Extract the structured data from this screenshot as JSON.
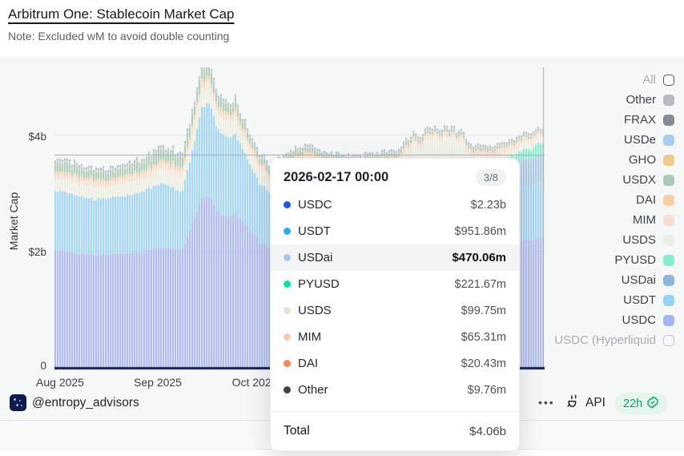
{
  "header": {
    "title": "Arbitrum One: Stablecoin Market Cap",
    "note": "Note: Excluded wM to avoid double counting"
  },
  "chart_data": {
    "type": "bar",
    "subtype": "stacked-time-series",
    "title": "Arbitrum One: Stablecoin Market Cap",
    "ylabel": "Market Cap",
    "xlabel": "",
    "y_ticks": [
      "$4b",
      "$2b",
      "0"
    ],
    "y_tick_values_billions": [
      4,
      2,
      0
    ],
    "x_ticks": [
      "Aug 2025",
      "Sep 2025",
      "Oct 2025"
    ],
    "x_range": [
      "2025-08-01",
      "2026-02-17"
    ],
    "ylim_billions": [
      0,
      5.2
    ],
    "grid": "horizontal",
    "legend_position": "right",
    "axis_line_color": "#152052",
    "grid_color": "#e4e6e8",
    "crosshair_color": "#a7abb0",
    "series_bottom_to_top": [
      {
        "name": "USDC",
        "color": "#a8b5f3",
        "anchors": [
          [
            0,
            2.02
          ],
          [
            0.08,
            1.92
          ],
          [
            0.16,
            1.98
          ],
          [
            0.22,
            2.06
          ],
          [
            0.26,
            2.02
          ],
          [
            0.285,
            2.55
          ],
          [
            0.3,
            2.9
          ],
          [
            0.315,
            2.95
          ],
          [
            0.33,
            2.7
          ],
          [
            0.35,
            2.6
          ],
          [
            0.37,
            2.62
          ],
          [
            0.395,
            2.4
          ],
          [
            0.42,
            2.15
          ],
          [
            0.44,
            2.05
          ],
          [
            0.48,
            2.22
          ],
          [
            0.52,
            2.28
          ],
          [
            0.56,
            2.18
          ],
          [
            0.62,
            2.1
          ],
          [
            0.68,
            2.06
          ],
          [
            0.74,
            2.14
          ],
          [
            0.8,
            2.18
          ],
          [
            0.86,
            2.1
          ],
          [
            0.92,
            2.12
          ],
          [
            1,
            2.23
          ]
        ]
      },
      {
        "name": "USDT",
        "color": "#9cd2f5",
        "anchors": [
          [
            0,
            1.02
          ],
          [
            0.08,
            0.96
          ],
          [
            0.16,
            1.0
          ],
          [
            0.22,
            1.1
          ],
          [
            0.26,
            1.0
          ],
          [
            0.285,
            1.3
          ],
          [
            0.3,
            1.55
          ],
          [
            0.315,
            1.6
          ],
          [
            0.33,
            1.45
          ],
          [
            0.35,
            1.35
          ],
          [
            0.37,
            1.38
          ],
          [
            0.395,
            1.15
          ],
          [
            0.42,
            1.0
          ],
          [
            0.44,
            0.95
          ],
          [
            0.48,
            1.05
          ],
          [
            0.52,
            1.1
          ],
          [
            0.56,
            1.0
          ],
          [
            0.62,
            0.95
          ],
          [
            0.68,
            0.92
          ],
          [
            0.74,
            0.95
          ],
          [
            0.8,
            1.0
          ],
          [
            0.86,
            0.95
          ],
          [
            0.92,
            0.93
          ],
          [
            1,
            0.95
          ]
        ]
      },
      {
        "name": "USDai",
        "color": "#a6c6e3",
        "anchors": [
          [
            0,
            0
          ],
          [
            0.5,
            0
          ],
          [
            0.56,
            0.06
          ],
          [
            0.62,
            0.16
          ],
          [
            0.68,
            0.26
          ],
          [
            0.74,
            0.3
          ],
          [
            0.8,
            0.33
          ],
          [
            0.86,
            0.38
          ],
          [
            0.92,
            0.42
          ],
          [
            1,
            0.47
          ]
        ]
      },
      {
        "name": "PYUSD",
        "color": "#7eeccd",
        "anchors": [
          [
            0,
            0
          ],
          [
            0.86,
            0
          ],
          [
            0.9,
            0.06
          ],
          [
            0.94,
            0.13
          ],
          [
            1,
            0.22
          ]
        ]
      },
      {
        "name": "USDS",
        "color": "#edefe2",
        "anchors": [
          [
            0,
            0.22
          ],
          [
            0.1,
            0.2
          ],
          [
            0.2,
            0.22
          ],
          [
            0.3,
            0.3
          ],
          [
            0.35,
            0.27
          ],
          [
            0.4,
            0.22
          ],
          [
            0.5,
            0.2
          ],
          [
            0.6,
            0.22
          ],
          [
            0.7,
            0.26
          ],
          [
            0.73,
            0.42
          ],
          [
            0.78,
            0.46
          ],
          [
            0.83,
            0.42
          ],
          [
            0.85,
            0.22
          ],
          [
            0.9,
            0.12
          ],
          [
            1,
            0.1
          ]
        ]
      },
      {
        "name": "MIM",
        "color": "#f8dcd0",
        "anchors": [
          [
            0,
            0.08
          ],
          [
            0.3,
            0.09
          ],
          [
            0.6,
            0.07
          ],
          [
            1,
            0.065
          ]
        ]
      },
      {
        "name": "DAI",
        "color": "#f6cfa6",
        "anchors": [
          [
            0,
            0.05
          ],
          [
            0.3,
            0.06
          ],
          [
            0.6,
            0.03
          ],
          [
            1,
            0.02
          ]
        ]
      },
      {
        "name": "USDX",
        "color": "#a9cab5",
        "anchors": [
          [
            0,
            0.14
          ],
          [
            0.1,
            0.12
          ],
          [
            0.2,
            0.16
          ],
          [
            0.3,
            0.2
          ],
          [
            0.35,
            0.15
          ],
          [
            0.4,
            0.1
          ],
          [
            0.5,
            0.07
          ],
          [
            0.6,
            0.06
          ],
          [
            0.7,
            0.05
          ],
          [
            0.8,
            0.04
          ],
          [
            0.9,
            0.03
          ],
          [
            1,
            0.02
          ]
        ]
      },
      {
        "name": "GHO",
        "color": "#eecb90",
        "anchors": [
          [
            0,
            0.02
          ],
          [
            1,
            0.015
          ]
        ]
      },
      {
        "name": "USDe",
        "color": "#a5cdeb",
        "anchors": [
          [
            0,
            0.03
          ],
          [
            1,
            0.02
          ]
        ]
      },
      {
        "name": "FRAX",
        "color": "#9096a0",
        "anchors": [
          [
            0,
            0.012
          ],
          [
            1,
            0.01
          ]
        ]
      },
      {
        "name": "Other",
        "color": "#b6bac0",
        "anchors": [
          [
            0,
            0.01
          ],
          [
            1,
            0.01
          ]
        ]
      }
    ],
    "hovered_point": {
      "date": "2026-02-17 00:00",
      "total_billions": 4.06,
      "values_billions": {
        "USDC": 2.23,
        "USDT": 0.95186,
        "USDai": 0.47006,
        "PYUSD": 0.22167,
        "USDS": 0.09975,
        "MIM": 0.06531,
        "DAI": 0.02043,
        "Other": 0.00976
      }
    }
  },
  "tooltip": {
    "date": "2026-02-17 00:00",
    "page": "3/8",
    "rows": [
      {
        "name": "USDC",
        "value": "$2.23b",
        "dot": "#2355e0",
        "highlighted": false
      },
      {
        "name": "USDT",
        "value": "$951.86m",
        "dot": "#33aaee",
        "highlighted": false
      },
      {
        "name": "USDai",
        "value": "$470.06m",
        "dot": "#a9c9e6",
        "highlighted": true
      },
      {
        "name": "PYUSD",
        "value": "$221.67m",
        "dot": "#12dfa8",
        "highlighted": false
      },
      {
        "name": "USDS",
        "value": "$99.75m",
        "dot": "#e0e4d4",
        "highlighted": false
      },
      {
        "name": "MIM",
        "value": "$65.31m",
        "dot": "#f6c6b2",
        "highlighted": false
      },
      {
        "name": "DAI",
        "value": "$20.43m",
        "dot": "#f7885a",
        "highlighted": false
      },
      {
        "name": "Other",
        "value": "$9.76m",
        "dot": "#3f4347",
        "highlighted": false
      }
    ],
    "total_label": "Total",
    "total_value": "$4.06b"
  },
  "legend": {
    "items": [
      {
        "label": "All",
        "swatch": "outline-dark",
        "color": "",
        "muted": true
      },
      {
        "label": "Other",
        "swatch": "fill",
        "color": "#b7bbc1",
        "muted": false
      },
      {
        "label": "FRAX",
        "swatch": "fill",
        "color": "#878c94",
        "muted": false
      },
      {
        "label": "USDe",
        "swatch": "fill",
        "color": "#a7cdec",
        "muted": false
      },
      {
        "label": "GHO",
        "swatch": "fill",
        "color": "#eecb8e",
        "muted": false
      },
      {
        "label": "USDX",
        "swatch": "fill",
        "color": "#a9cab8",
        "muted": false
      },
      {
        "label": "DAI",
        "swatch": "fill",
        "color": "#f6d0a6",
        "muted": false
      },
      {
        "label": "MIM",
        "swatch": "fill",
        "color": "#f8ded2",
        "muted": false
      },
      {
        "label": "USDS",
        "swatch": "fill",
        "color": "#eceee6",
        "muted": false
      },
      {
        "label": "PYUSD",
        "swatch": "fill",
        "color": "#85eccf",
        "muted": false
      },
      {
        "label": "USDai",
        "swatch": "fill",
        "color": "#8cb8dc",
        "muted": false
      },
      {
        "label": "USDT",
        "swatch": "fill",
        "color": "#93d2f4",
        "muted": false
      },
      {
        "label": "USDC",
        "swatch": "fill",
        "color": "#a6b4f4",
        "muted": false
      },
      {
        "label": "USDC (Hyperliquid",
        "swatch": "outline-light",
        "color": "",
        "muted": true
      }
    ]
  },
  "footer": {
    "handle": "@entropy_advisors",
    "more_label": "•••",
    "api_label": "API",
    "refresh_badge": "22h"
  }
}
